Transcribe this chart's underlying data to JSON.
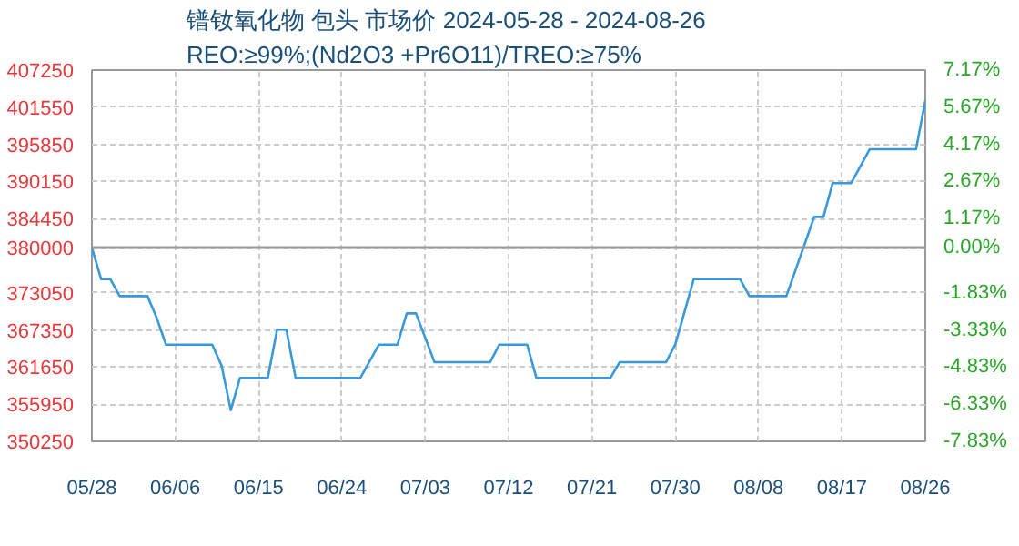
{
  "chart_data": {
    "type": "line",
    "title": "镨钕氧化物 包头 市场价 2024-05-28 - 2024-08-26",
    "subtitle": "REO:≥99%;(Nd2O3 +Pr6O11)/TREO:≥75%",
    "x": [
      "2024-05-28",
      "2024-05-29",
      "2024-05-30",
      "2024-05-31",
      "2024-06-03",
      "2024-06-04",
      "2024-06-05",
      "2024-06-10",
      "2024-06-11",
      "2024-06-12",
      "2024-06-13",
      "2024-06-16",
      "2024-06-17",
      "2024-06-18",
      "2024-06-19",
      "2024-06-26",
      "2024-06-28",
      "2024-06-30",
      "2024-07-01",
      "2024-07-02",
      "2024-07-04",
      "2024-07-10",
      "2024-07-11",
      "2024-07-14",
      "2024-07-15",
      "2024-07-23",
      "2024-07-24",
      "2024-07-29",
      "2024-07-30",
      "2024-08-01",
      "2024-08-06",
      "2024-08-07",
      "2024-08-11",
      "2024-08-14",
      "2024-08-15",
      "2024-08-16",
      "2024-08-18",
      "2024-08-20",
      "2024-08-25",
      "2024-08-26"
    ],
    "series": [
      {
        "color": "#3a9ad9",
        "values": [
          380000,
          375150,
          375150,
          372550,
          372550,
          369200,
          365100,
          365100,
          361900,
          355050,
          360000,
          360000,
          367400,
          367400,
          360000,
          360000,
          365100,
          365100,
          369900,
          369900,
          362400,
          362400,
          365100,
          365100,
          360000,
          360000,
          362400,
          362400,
          365100,
          375150,
          375150,
          372550,
          372550,
          384700,
          384700,
          389900,
          389900,
          395100,
          395100,
          402550
        ]
      }
    ],
    "xlim": [
      "2024-05-28",
      "2024-08-26"
    ],
    "xticks": [
      {
        "value": "2024-05-28",
        "label": "05/28"
      },
      {
        "value": "2024-06-06",
        "label": "06/06"
      },
      {
        "value": "2024-06-15",
        "label": "06/15"
      },
      {
        "value": "2024-06-24",
        "label": "06/24"
      },
      {
        "value": "2024-07-03",
        "label": "07/03"
      },
      {
        "value": "2024-07-12",
        "label": "07/12"
      },
      {
        "value": "2024-07-21",
        "label": "07/21"
      },
      {
        "value": "2024-07-30",
        "label": "07/30"
      },
      {
        "value": "2024-08-08",
        "label": "08/08"
      },
      {
        "value": "2024-08-17",
        "label": "08/17"
      },
      {
        "value": "2024-08-26",
        "label": "08/26"
      }
    ],
    "ylim": [
      350250,
      407250
    ],
    "yticks": [
      350250,
      355950,
      361650,
      367350,
      373050,
      380000,
      384450,
      390150,
      395850,
      401550,
      407250
    ],
    "y2lim": [
      -7.83,
      7.17
    ],
    "y2ticks": [
      {
        "value": -7.83,
        "label": "-7.83%"
      },
      {
        "value": -6.33,
        "label": "-6.33%"
      },
      {
        "value": -4.83,
        "label": "-4.83%"
      },
      {
        "value": -3.33,
        "label": "-3.33%"
      },
      {
        "value": -1.83,
        "label": "-1.83%"
      },
      {
        "value": 0,
        "label": "0.00%"
      },
      {
        "value": 1.17,
        "label": "1.17%"
      },
      {
        "value": 2.67,
        "label": "2.67%"
      },
      {
        "value": 4.17,
        "label": "4.17%"
      },
      {
        "value": 5.67,
        "label": "5.67%"
      },
      {
        "value": 7.17,
        "label": "7.17%"
      }
    ],
    "ref_lines": [
      {
        "axis": "y",
        "value": 380000,
        "color": "#999999"
      }
    ],
    "grid": true
  }
}
